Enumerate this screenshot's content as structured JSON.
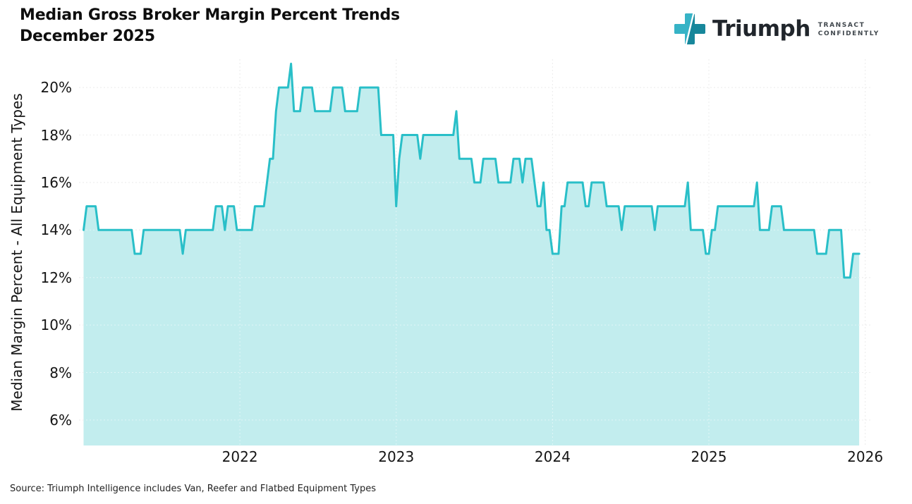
{
  "header": {
    "title_line1": "Median Gross Broker Margin Percent Trends",
    "title_line2": "December 2025"
  },
  "logo": {
    "brand": "Triumph",
    "tagline_line1": "TRANSACT",
    "tagline_line2": "CONFIDENTLY",
    "icon_color_light": "#36b3c6",
    "icon_color_dark": "#17879b"
  },
  "footer": {
    "source": "Source: Triumph Intelligence includes Van, Reefer and Flatbed Equipment Types"
  },
  "chart_data": {
    "type": "area",
    "title": "Median Gross Broker Margin Percent Trends December 2025",
    "xlabel": "",
    "ylabel": "Median Margin Percent - All Equipment Types",
    "x_start_year": 2021,
    "points_per_year": 52,
    "x_tick_labels": [
      "2022",
      "2023",
      "2024",
      "2025",
      "2026"
    ],
    "y_ticks": [
      6,
      8,
      10,
      12,
      14,
      16,
      18,
      20
    ],
    "y_tick_suffix": "%",
    "ylim": [
      4.93,
      21.19
    ],
    "grid": true,
    "legend": "none",
    "colors": {
      "line": "#29bfc8",
      "fill": "#c2edee",
      "grid": "#dddddd",
      "grid_on_fill": "#ffffff"
    },
    "values": [
      14,
      15,
      15,
      15,
      15,
      14,
      14,
      14,
      14,
      14,
      14,
      14,
      14,
      14,
      14,
      14,
      14,
      13,
      13,
      13,
      14,
      14,
      14,
      14,
      14,
      14,
      14,
      14,
      14,
      14,
      14,
      14,
      14,
      13,
      14,
      14,
      14,
      14,
      14,
      14,
      14,
      14,
      14,
      14,
      15,
      15,
      15,
      14,
      15,
      15,
      15,
      14,
      14,
      14,
      14,
      14,
      14,
      15,
      15,
      15,
      15,
      16,
      17,
      17,
      19,
      20,
      20,
      20,
      20,
      21,
      19,
      19,
      19,
      20,
      20,
      20,
      20,
      19,
      19,
      19,
      19,
      19,
      19,
      20,
      20,
      20,
      20,
      19,
      19,
      19,
      19,
      19,
      20,
      20,
      20,
      20,
      20,
      20,
      20,
      18,
      18,
      18,
      18,
      18,
      15,
      17,
      18,
      18,
      18,
      18,
      18,
      18,
      17,
      18,
      18,
      18,
      18,
      18,
      18,
      18,
      18,
      18,
      18,
      18,
      19,
      17,
      17,
      17,
      17,
      17,
      16,
      16,
      16,
      17,
      17,
      17,
      17,
      17,
      16,
      16,
      16,
      16,
      16,
      17,
      17,
      17,
      16,
      17,
      17,
      17,
      16,
      15,
      15,
      16,
      14,
      14,
      13,
      13,
      13,
      15,
      15,
      16,
      16,
      16,
      16,
      16,
      16,
      15,
      15,
      16,
      16,
      16,
      16,
      16,
      15,
      15,
      15,
      15,
      15,
      14,
      15,
      15,
      15,
      15,
      15,
      15,
      15,
      15,
      15,
      15,
      14,
      15,
      15,
      15,
      15,
      15,
      15,
      15,
      15,
      15,
      15,
      16,
      14,
      14,
      14,
      14,
      14,
      13,
      13,
      14,
      14,
      15,
      15,
      15,
      15,
      15,
      15,
      15,
      15,
      15,
      15,
      15,
      15,
      15,
      16,
      14,
      14,
      14,
      14,
      15,
      15,
      15,
      15,
      14,
      14,
      14,
      14,
      14,
      14,
      14,
      14,
      14,
      14,
      14,
      13,
      13,
      13,
      13,
      14,
      14,
      14,
      14,
      14,
      12,
      12,
      12,
      13,
      13,
      13
    ]
  }
}
